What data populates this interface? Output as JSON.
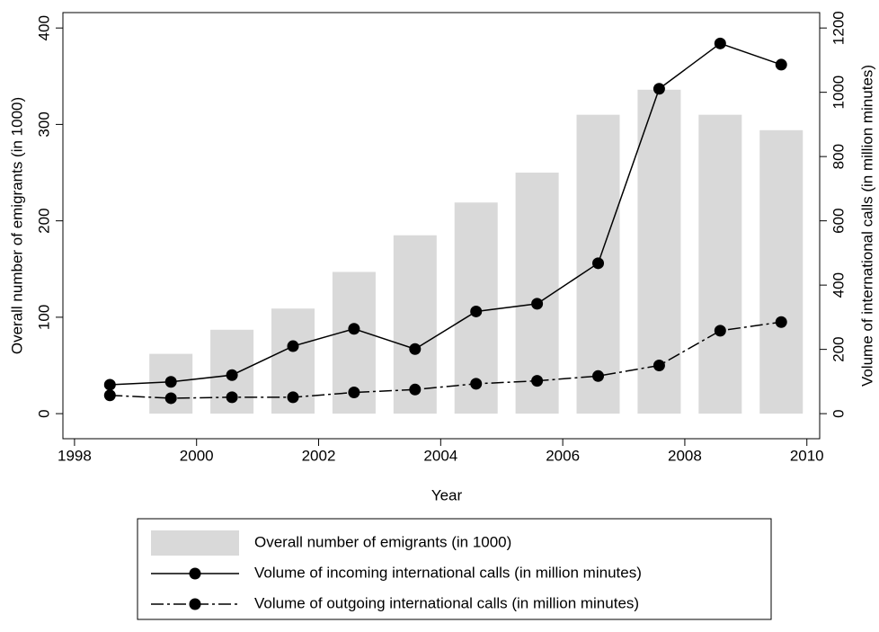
{
  "chart_data": {
    "type": "combo",
    "xlabel": "Year",
    "ylabel": "Overall number of emigrants (in 1000)",
    "y2label": "Volume of international calls (in million minutes)",
    "xlim": [
      1997.81,
      2010.21
    ],
    "xticks": [
      1998,
      2000,
      2002,
      2004,
      2006,
      2008,
      2010
    ],
    "ylim": [
      -26,
      416
    ],
    "yticks": [
      0,
      100,
      200,
      300,
      400
    ],
    "y2lim": [
      -78,
      1248
    ],
    "y2ticks": [
      0,
      200,
      400,
      600,
      800,
      1000,
      1200
    ],
    "series": [
      {
        "name": "Overall number of emigrants (in 1000)",
        "type": "bar",
        "color": "#d9d9d9",
        "x": [
          1999.58,
          2000.58,
          2001.58,
          2002.58,
          2003.58,
          2004.58,
          2005.58,
          2006.58,
          2007.58,
          2008.58,
          2009.58
        ],
        "values": [
          62,
          87,
          109,
          147,
          185,
          219,
          250,
          310,
          336,
          310,
          294
        ]
      },
      {
        "name": "Volume of incoming international calls (in million minutes)",
        "type": "line",
        "color": "#000000",
        "linestyle": "solid",
        "axis": "y2",
        "x": [
          1998.58,
          1999.58,
          2000.58,
          2001.58,
          2002.58,
          2003.58,
          2004.58,
          2005.58,
          2006.58,
          2007.58,
          2008.58,
          2009.58
        ],
        "values": [
          90,
          99,
          120,
          210,
          264,
          201,
          318,
          342,
          468,
          1011,
          1152,
          1086
        ]
      },
      {
        "name": "Volume of outgoing international calls (in million minutes)",
        "type": "line",
        "color": "#000000",
        "linestyle": "dashdot",
        "axis": "y2",
        "x": [
          1998.58,
          1999.58,
          2000.58,
          2001.58,
          2002.58,
          2003.58,
          2004.58,
          2005.58,
          2006.58,
          2007.58,
          2008.58,
          2009.58
        ],
        "values": [
          57,
          48,
          51,
          51,
          66,
          75,
          93,
          102,
          117,
          150,
          258,
          285
        ]
      }
    ]
  }
}
